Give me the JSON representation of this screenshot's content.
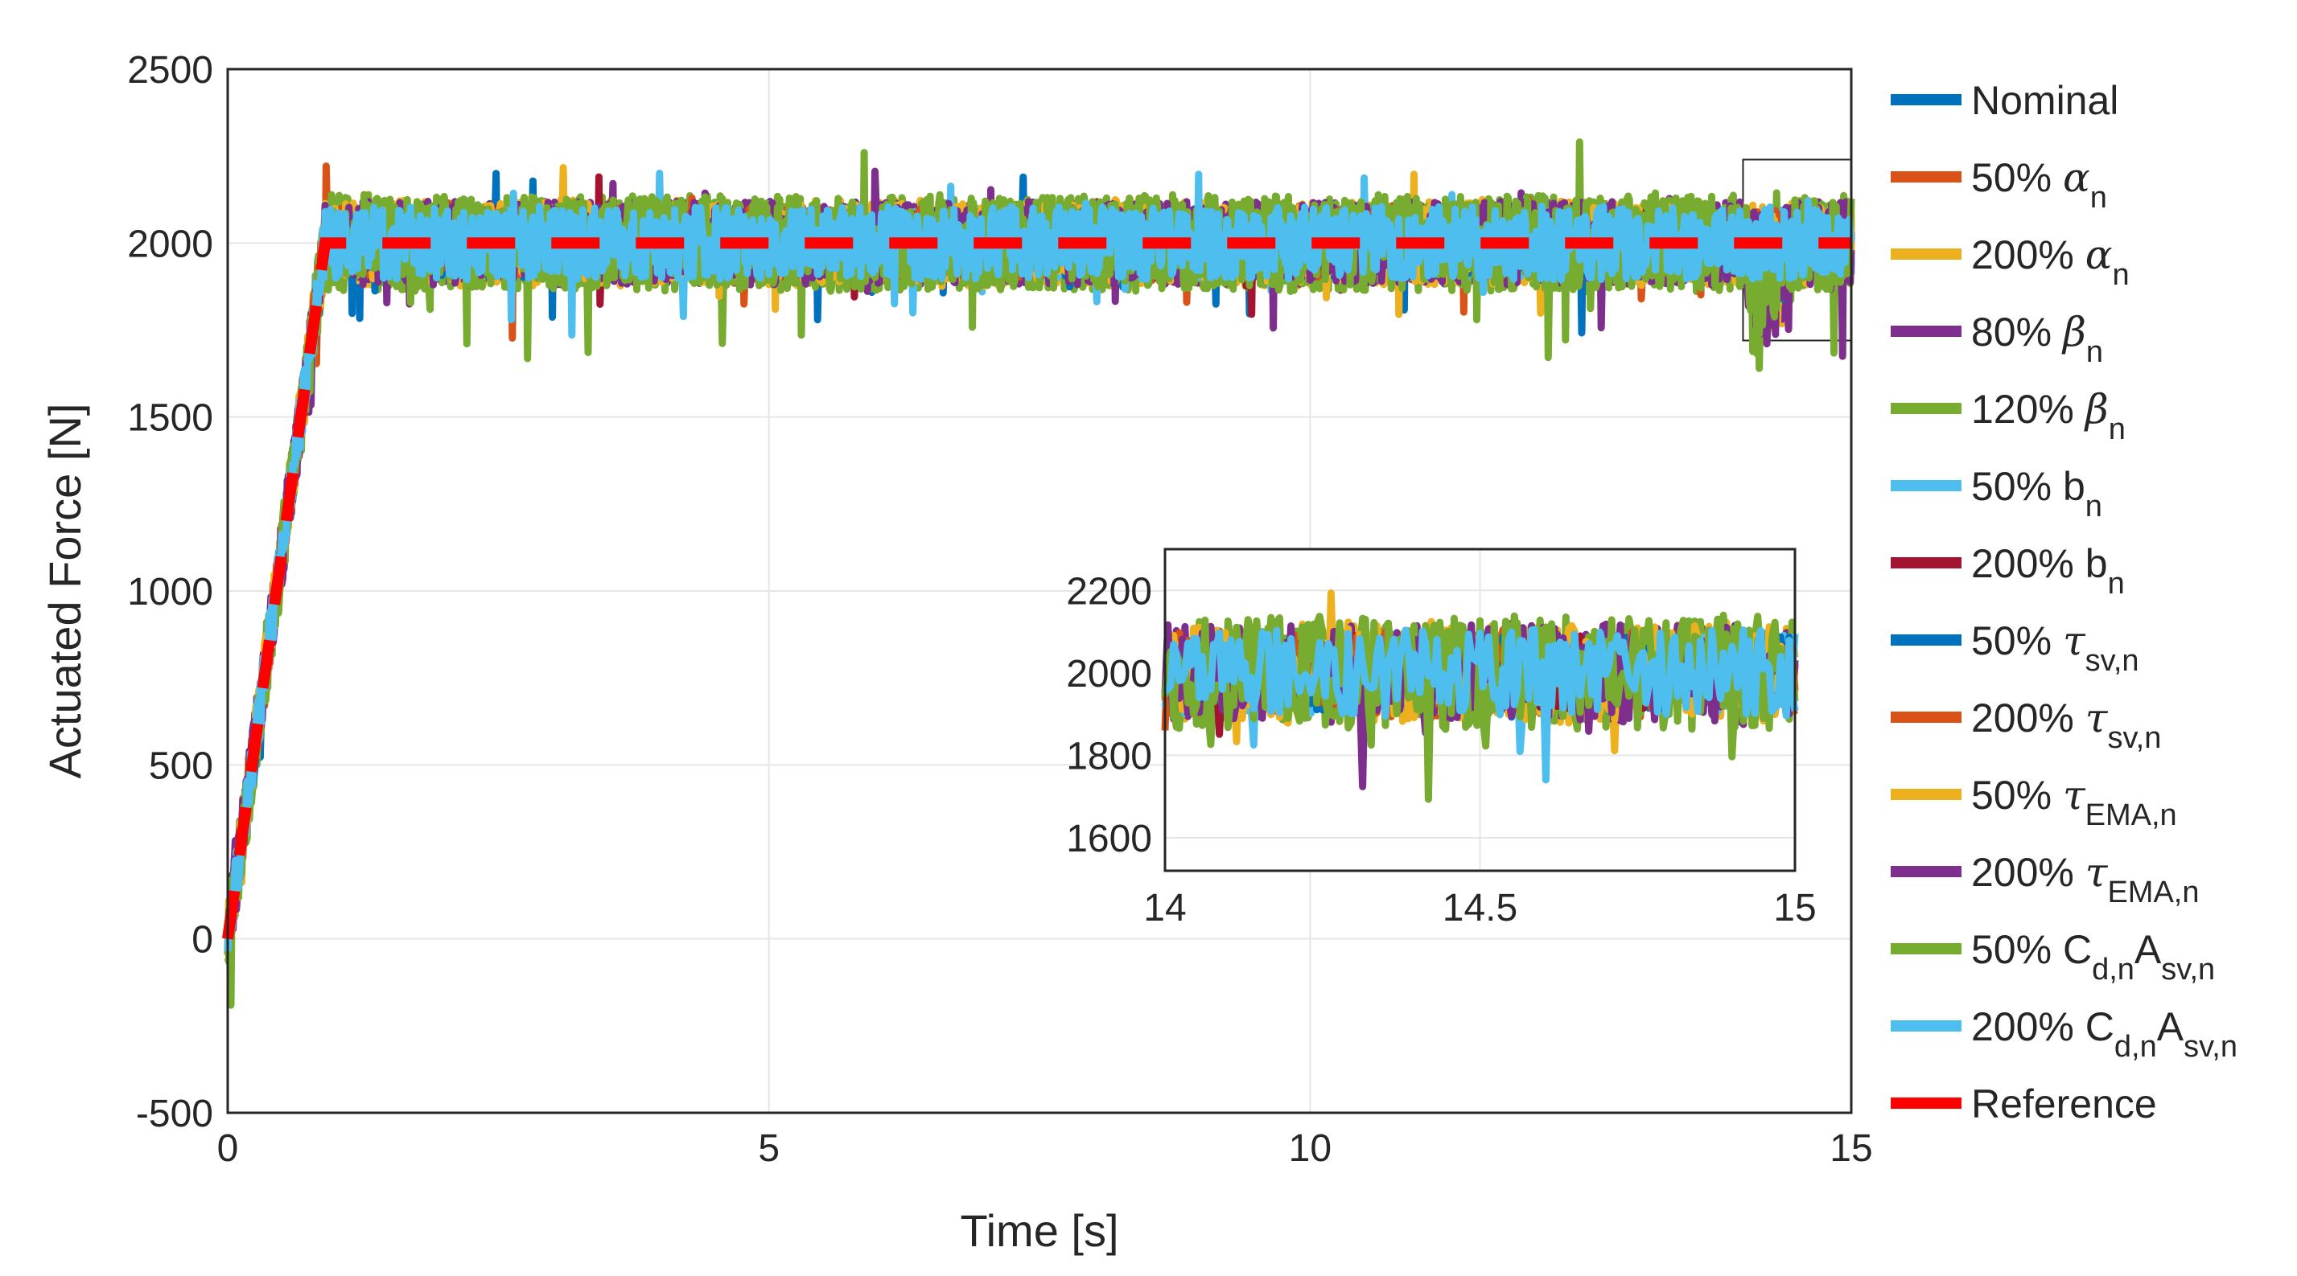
{
  "chart_data": {
    "type": "line",
    "xlabel": "Time [s]",
    "ylabel": "Actuated Force [N]",
    "xlim": [
      0,
      15
    ],
    "ylim": [
      -500,
      2500
    ],
    "x_ticks": [
      "0",
      "5",
      "10",
      "15"
    ],
    "y_ticks": [
      "-500",
      "0",
      "500",
      "1000",
      "1500",
      "2000",
      "2500"
    ],
    "x_tick_values": [
      0,
      5,
      10,
      15
    ],
    "y_tick_values": [
      -500,
      0,
      500,
      1000,
      1500,
      2000,
      2500
    ],
    "grid": true,
    "legend_position": "outside-right",
    "series": [
      {
        "name": "Nominal",
        "label_main": "Nominal",
        "label_sym": "",
        "label_sub": "",
        "label_mid": "",
        "label_sub2": "",
        "color": "#0072BD",
        "style": "solid",
        "seed": 11,
        "amp": 95
      },
      {
        "name": "50% α n",
        "label_main": "50% ",
        "label_sym": "α",
        "label_sub": "n",
        "label_mid": "",
        "label_sub2": "",
        "color": "#D95319",
        "style": "solid",
        "seed": 23,
        "amp": 110
      },
      {
        "name": "200% α n",
        "label_main": "200% ",
        "label_sym": "α",
        "label_sub": "n",
        "label_mid": "",
        "label_sub2": "",
        "color": "#EDB120",
        "style": "solid",
        "seed": 37,
        "amp": 125
      },
      {
        "name": "80% β n",
        "label_main": "80% ",
        "label_sym": "β",
        "label_sub": "n",
        "label_mid": "",
        "label_sub2": "",
        "color": "#7E2F8E",
        "style": "solid",
        "seed": 41,
        "amp": 120
      },
      {
        "name": "120% β n",
        "label_main": "120% ",
        "label_sym": "β",
        "label_sub": "n",
        "label_mid": "",
        "label_sub2": "",
        "color": "#77AC30",
        "style": "solid",
        "seed": 53,
        "amp": 140
      },
      {
        "name": "50% b n",
        "label_main": "50% b",
        "label_sym": "",
        "label_sub": "n",
        "label_mid": "",
        "label_sub2": "",
        "color": "#4DBEEE",
        "style": "solid",
        "seed": 67,
        "amp": 100
      },
      {
        "name": "200% b n",
        "label_main": "200% b",
        "label_sym": "",
        "label_sub": "n",
        "label_mid": "",
        "label_sub2": "",
        "color": "#A2142F",
        "style": "solid",
        "seed": 71,
        "amp": 90
      },
      {
        "name": "50% τ sv,n",
        "label_main": "50% ",
        "label_sym": "τ",
        "label_sub": "sv,n",
        "label_mid": "",
        "label_sub2": "",
        "color": "#0072BD",
        "style": "solid",
        "seed": 83,
        "amp": 95
      },
      {
        "name": "200% τ sv,n",
        "label_main": "200% ",
        "label_sym": "τ",
        "label_sub": "sv,n",
        "label_mid": "",
        "label_sub2": "",
        "color": "#D95319",
        "style": "solid",
        "seed": 97,
        "amp": 100
      },
      {
        "name": "50% τ EMA,n",
        "label_main": "50% ",
        "label_sym": "τ",
        "label_sub": "EMA,n",
        "label_mid": "",
        "label_sub2": "",
        "color": "#EDB120",
        "style": "solid",
        "seed": 101,
        "amp": 115
      },
      {
        "name": "200% τ EMA,n",
        "label_main": "200% ",
        "label_sym": "τ",
        "label_sub": "EMA,n",
        "label_mid": "",
        "label_sub2": "",
        "color": "#7E2F8E",
        "style": "solid",
        "seed": 113,
        "amp": 120
      },
      {
        "name": "50% C d,n A sv,n",
        "label_main": "50% C",
        "label_sym": "",
        "label_sub": "d,n",
        "label_mid": "A",
        "label_sub2": "sv,n",
        "color": "#77AC30",
        "style": "solid",
        "seed": 127,
        "amp": 135
      },
      {
        "name": "200% C d,n A sv,n",
        "label_main": "200% C",
        "label_sym": "",
        "label_sub": "d,n",
        "label_mid": "A",
        "label_sub2": "sv,n",
        "color": "#4DBEEE",
        "style": "solid",
        "seed": 131,
        "amp": 105
      },
      {
        "name": "Reference",
        "label_main": "Reference",
        "label_sym": "",
        "label_sub": "",
        "label_mid": "",
        "label_sub2": "",
        "color": "#FF0000",
        "style": "dashed",
        "seed": 0,
        "amp": 0
      }
    ],
    "reference": {
      "ramp_end_time": 0.9,
      "steady_value": 2000
    },
    "zoom_region": {
      "x": [
        14,
        15
      ],
      "y": [
        1720,
        2240
      ]
    },
    "inset": {
      "xlim": [
        14,
        15
      ],
      "ylim": [
        1520,
        2300
      ],
      "x_ticks": [
        "14",
        "14.5",
        "15"
      ],
      "y_ticks": [
        "1600",
        "1800",
        "2000",
        "2200"
      ],
      "x_tick_values": [
        14,
        14.5,
        15
      ],
      "y_tick_values": [
        1600,
        1800,
        2000,
        2200
      ]
    }
  }
}
